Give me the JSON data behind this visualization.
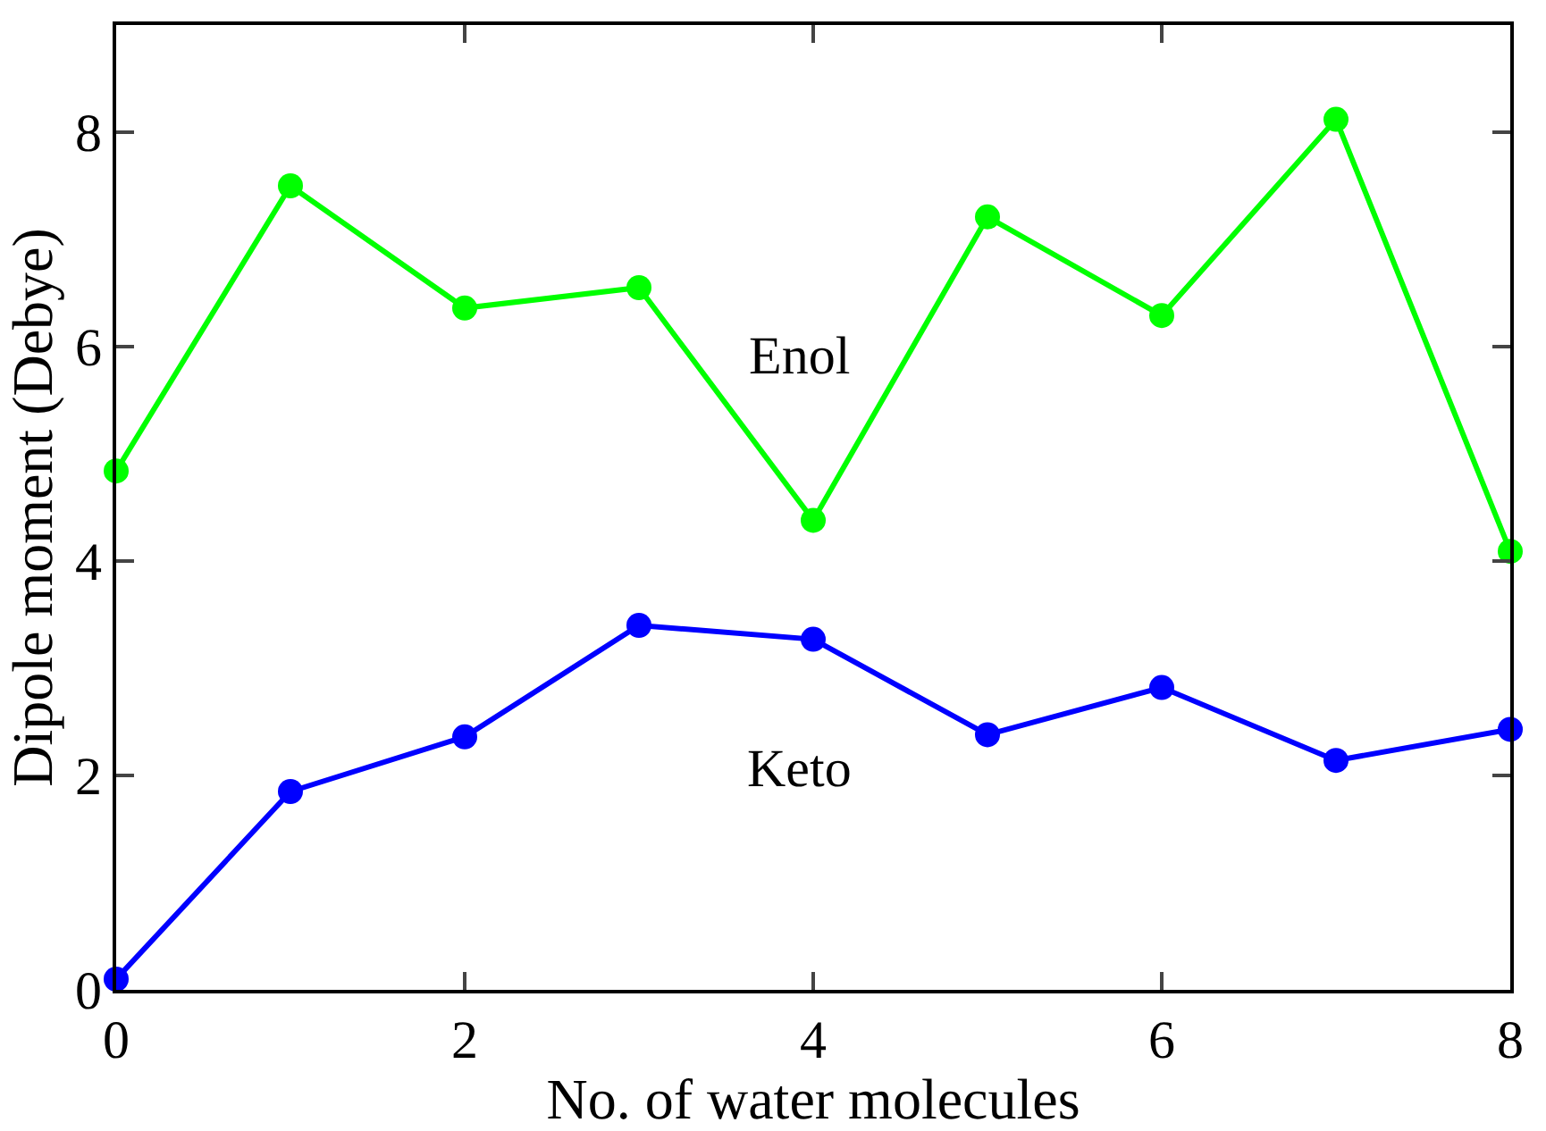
{
  "chart_data": {
    "type": "line",
    "xlabel": "No. of water molecules",
    "ylabel": "Dipole moment (Debye)",
    "x": [
      0,
      1,
      2,
      3,
      4,
      5,
      6,
      7,
      8
    ],
    "series": [
      {
        "color": "#00ff00",
        "values": [
          4.84,
          7.5,
          6.36,
          6.55,
          4.38,
          7.21,
          6.29,
          8.12,
          4.09
        ]
      },
      {
        "color": "#0000ff",
        "values": [
          0.1,
          1.85,
          2.36,
          3.4,
          3.27,
          2.38,
          2.82,
          2.14,
          2.43
        ]
      }
    ],
    "annotations": [
      "Enol",
      "Keto"
    ],
    "xlim": [
      0,
      8
    ],
    "xticks": [
      0,
      2,
      4,
      6,
      8
    ],
    "ylim": [
      0,
      9
    ],
    "yticks": [
      0,
      2,
      4,
      6,
      8
    ],
    "marker": "circle",
    "line_style": "solid"
  }
}
